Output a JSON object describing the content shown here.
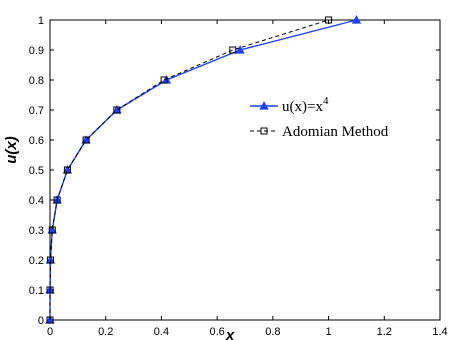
{
  "chart_data": {
    "type": "line",
    "title": "",
    "xlabel": "x",
    "ylabel": "u(x)",
    "xlim": [
      0,
      1.4
    ],
    "ylim": [
      0,
      1
    ],
    "xticks": [
      "0",
      "0.2",
      "0.4",
      "0.6",
      "0.8",
      "1",
      "1.2",
      "1.4"
    ],
    "yticks": [
      "0",
      "0.1",
      "0.2",
      "0.3",
      "0.4",
      "0.5",
      "0.6",
      "0.7",
      "0.8",
      "0.9",
      "1"
    ],
    "grid": false,
    "legend_position": "center-right",
    "series": [
      {
        "name": "u(x)=x",
        "name_superscript": "4",
        "color": "#1f3fff",
        "line_style": "solid",
        "marker": "filled-triangle",
        "x": [
          0,
          0.0001,
          0.0016,
          0.0081,
          0.0256,
          0.0625,
          0.1296,
          0.2401,
          0.4096,
          0.6561,
          1.0
        ],
        "y": [
          0,
          0.1,
          0.2,
          0.3,
          0.4,
          0.5,
          0.6,
          0.7,
          0.8,
          0.9,
          1.0
        ]
      },
      {
        "name": "Adomian Method",
        "color": "#000000",
        "line_style": "dashed",
        "marker": "open-square",
        "x": [
          0,
          0.0001,
          0.0016,
          0.0081,
          0.0256,
          0.0625,
          0.1296,
          0.2401,
          0.4096,
          0.6561,
          1.0
        ],
        "y": [
          0,
          0.1,
          0.2,
          0.3,
          0.4,
          0.5,
          0.6,
          0.7,
          0.8,
          0.9,
          1.0
        ]
      }
    ]
  }
}
